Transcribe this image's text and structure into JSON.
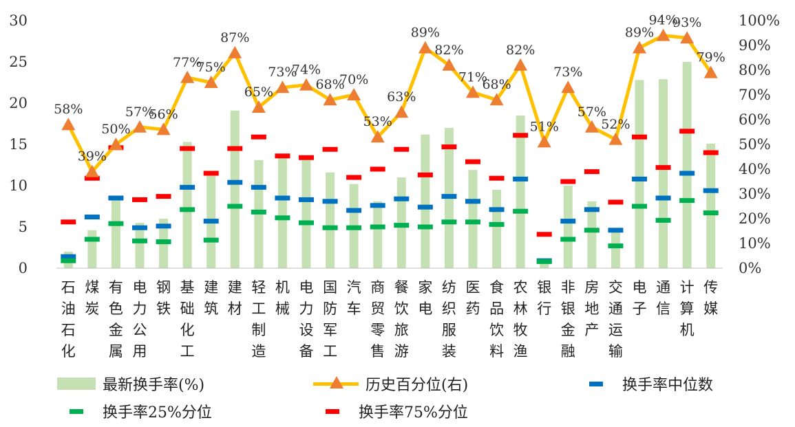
{
  "chart_data": {
    "type": "bar",
    "categories": [
      "石油石化",
      "煤炭",
      "有色金属",
      "电力公用",
      "钢铁",
      "基础化工",
      "建筑",
      "建材",
      "轻工制造",
      "机械",
      "电力设备",
      "国防军工",
      "汽车",
      "商贸零售",
      "餐饮旅游",
      "家电",
      "纺织服装",
      "医药",
      "食品饮料",
      "农林牧渔",
      "银行",
      "非银金融",
      "房地产",
      "交通运输",
      "电子",
      "通信",
      "计算机",
      "传媒"
    ],
    "series": [
      {
        "name": "最新换手率(%)",
        "type": "bar",
        "axis": "left",
        "color": "#c5e0b3",
        "values": [
          2.0,
          4.6,
          8.6,
          5.5,
          6.0,
          15.3,
          11.4,
          19.1,
          13.1,
          13.6,
          13.4,
          11.6,
          10.2,
          8.1,
          11.0,
          16.2,
          17.0,
          11.9,
          9.5,
          18.5,
          0.9,
          10.0,
          8.1,
          4.4,
          22.8,
          22.9,
          25.0,
          15.1
        ]
      },
      {
        "name": "历史百分位(右)",
        "type": "line",
        "axis": "right",
        "color": "#ffc000",
        "marker_color": "#ed7d31",
        "values": [
          58,
          39,
          50,
          57,
          56,
          77,
          75,
          87,
          65,
          73,
          74,
          68,
          70,
          53,
          63,
          89,
          82,
          71,
          68,
          82,
          51,
          73,
          57,
          52,
          89,
          94,
          93,
          79
        ]
      },
      {
        "name": "换手率中位数",
        "type": "marker",
        "axis": "left",
        "color": "#0070c0",
        "values": [
          1.4,
          6.2,
          8.5,
          4.9,
          5.1,
          9.8,
          5.7,
          10.4,
          9.8,
          8.5,
          8.3,
          8.1,
          7.0,
          7.6,
          8.4,
          7.4,
          8.7,
          8.1,
          7.1,
          10.8,
          0.9,
          5.7,
          7.1,
          4.6,
          10.8,
          8.5,
          11.5,
          9.4
        ]
      },
      {
        "name": "换手率25%分位",
        "type": "marker",
        "axis": "left",
        "color": "#00b050",
        "values": [
          0.9,
          3.5,
          5.4,
          3.3,
          3.2,
          7.1,
          3.4,
          7.5,
          6.8,
          6.1,
          5.5,
          4.9,
          4.9,
          5.0,
          5.2,
          5.0,
          5.6,
          5.6,
          5.3,
          6.9,
          0.8,
          3.5,
          4.6,
          2.7,
          7.5,
          5.8,
          8.2,
          6.7
        ]
      },
      {
        "name": "换手率75%分位",
        "type": "marker",
        "axis": "left",
        "color": "#ff0000",
        "values": [
          5.6,
          10.9,
          14.6,
          8.3,
          8.7,
          14.5,
          11.5,
          14.5,
          15.9,
          13.6,
          13.4,
          14.4,
          11.0,
          12.0,
          14.4,
          11.3,
          14.7,
          12.9,
          10.9,
          16.1,
          4.1,
          10.5,
          11.7,
          8.0,
          15.9,
          12.2,
          16.6,
          14.0
        ]
      }
    ],
    "y_left": {
      "lim": [
        0,
        30
      ],
      "ticks": [
        "0",
        "5",
        "10",
        "15",
        "20",
        "25",
        "30"
      ]
    },
    "y_right": {
      "lim": [
        0,
        100
      ],
      "ticks": [
        "0%",
        "10%",
        "20%",
        "30%",
        "40%",
        "50%",
        "60%",
        "70%",
        "80%",
        "90%",
        "100%"
      ]
    },
    "data_labels": [
      "58%",
      "39%",
      "50%",
      "57%",
      "56%",
      "77%",
      "75%",
      "87%",
      "65%",
      "73%",
      "74%",
      "68%",
      "70%",
      "53%",
      "63%",
      "89%",
      "82%",
      "71%",
      "68%",
      "82%",
      "51%",
      "73%",
      "57%",
      "52%",
      "89%",
      "94%",
      "93%",
      "79%"
    ],
    "grid": false,
    "legend_position": "bottom"
  }
}
